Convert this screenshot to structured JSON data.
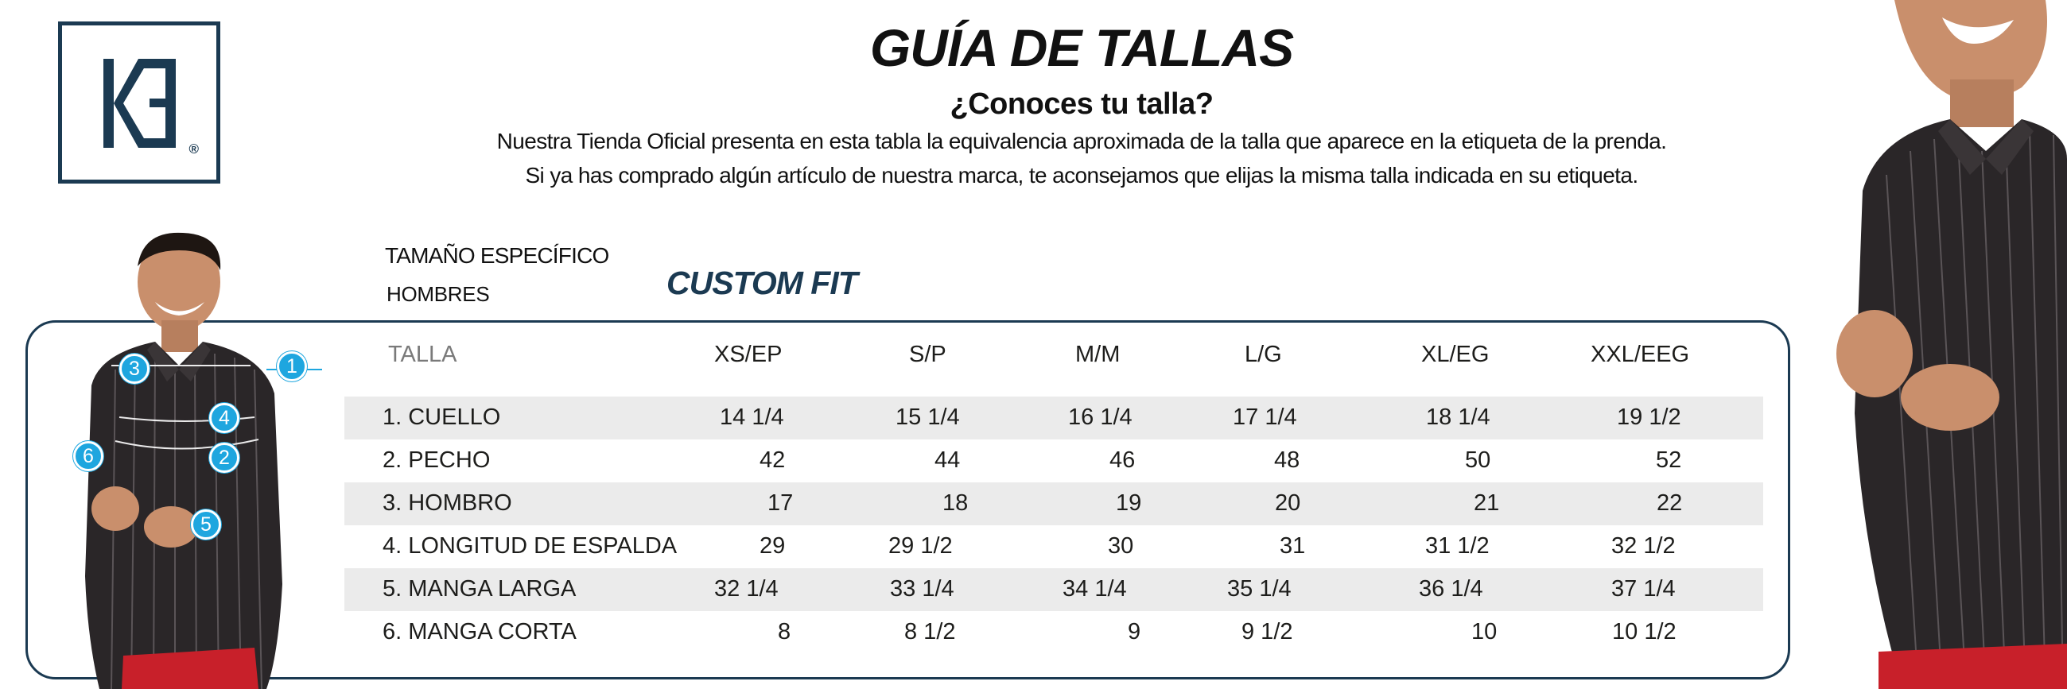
{
  "brand": {
    "logo_text": "KE",
    "registered_mark": "®"
  },
  "header": {
    "title": "GUÍA DE TALLAS",
    "subtitle": "¿Conoces tu talla?",
    "intro_line1": "Nuestra Tienda Oficial presenta en esta tabla la equivalencia aproximada de la talla que aparece en la etiqueta de la prenda.",
    "intro_line2": "Si ya has comprado algún artículo de nuestra marca, te aconsejamos que elijas la misma talla indicada en su etiqueta."
  },
  "section": {
    "specific_size_label": "TAMAÑO ESPECÍFICO",
    "gender_label": "HOMBRES",
    "fit_label": "CUSTOM FIT"
  },
  "table": {
    "columns": [
      "TALLA",
      "XS/EP",
      "S/P",
      "M/M",
      "L/G",
      "XL/EG",
      "XXL/EEG"
    ],
    "rows": [
      {
        "label": "1. CUELLO",
        "values": [
          "14 1/4",
          "15 1/4",
          "16 1/4",
          "17 1/4",
          "18 1/4",
          "19 1/2"
        ]
      },
      {
        "label": "2. PECHO",
        "values": [
          "42",
          "44",
          "46",
          "48",
          "50",
          "52"
        ]
      },
      {
        "label": "3. HOMBRO",
        "values": [
          "17",
          "18",
          "19",
          "20",
          "21",
          "22"
        ]
      },
      {
        "label": "4. LONGITUD DE ESPALDA",
        "values": [
          "29",
          "29 1/2",
          "30",
          "31",
          "31 1/2",
          "32 1/2"
        ]
      },
      {
        "label": "5. MANGA LARGA",
        "values": [
          "32 1/4",
          "33 1/4",
          "34 1/4",
          "35 1/4",
          "36 1/4",
          "37 1/4"
        ]
      },
      {
        "label": "6. MANGA CORTA",
        "values": [
          "8",
          "8 1/2",
          "9",
          "9 1/2",
          "10",
          "10 1/2"
        ]
      }
    ]
  },
  "measurement_callouts": [
    "1",
    "2",
    "3",
    "4",
    "5",
    "6"
  ],
  "colors": {
    "brand_navy": "#1b3a52",
    "callout_blue": "#1ea6df",
    "row_shade": "#ebebeb",
    "shirt_dark": "#2a2628",
    "pants_red": "#c8202a"
  }
}
